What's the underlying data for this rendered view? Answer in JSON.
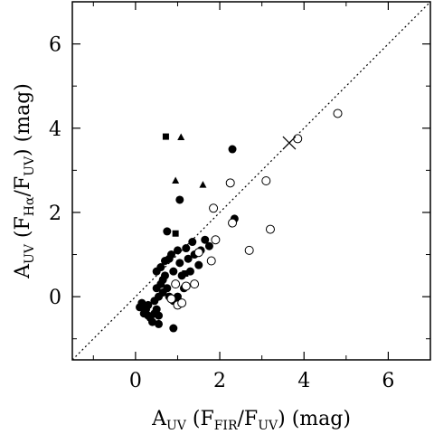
{
  "chart_data": {
    "type": "scatter",
    "xlabel": {
      "main": "A",
      "sub": "UV",
      "rest1": " (F",
      "sub2": "FIR",
      "rest2": "/F",
      "sub3": "UV",
      "rest3": ")  (mag)"
    },
    "ylabel": {
      "main": "A",
      "sub": "UV",
      "rest1": " (F",
      "sub2": "Hα",
      "rest2": "/F",
      "sub3": "UV",
      "rest3": ")  (mag)"
    },
    "xlim": [
      -1.5,
      7.0
    ],
    "ylim": [
      -1.5,
      7.0
    ],
    "xticks": [
      0,
      2,
      4,
      6
    ],
    "yticks": [
      0,
      2,
      4,
      6
    ],
    "xtick_labels": [
      "0",
      "2",
      "4",
      "6"
    ],
    "ytick_labels": [
      "0",
      "2",
      "4",
      "6"
    ],
    "one_to_one_line": true,
    "grid": false,
    "series": [
      {
        "marker": "filled-circle",
        "points": [
          [
            0.1,
            -0.25
          ],
          [
            0.15,
            -0.15
          ],
          [
            0.2,
            -0.4
          ],
          [
            0.25,
            -0.3
          ],
          [
            0.3,
            -0.2
          ],
          [
            0.35,
            -0.5
          ],
          [
            0.4,
            -0.6
          ],
          [
            0.45,
            -0.4
          ],
          [
            0.5,
            -0.3
          ],
          [
            0.55,
            -0.45
          ],
          [
            0.45,
            -0.1
          ],
          [
            0.55,
            0.0
          ],
          [
            0.5,
            0.2
          ],
          [
            0.6,
            0.3
          ],
          [
            0.65,
            0.1
          ],
          [
            0.5,
            0.6
          ],
          [
            0.6,
            0.7
          ],
          [
            0.7,
            0.5
          ],
          [
            0.75,
            0.2
          ],
          [
            0.8,
            0.0
          ],
          [
            0.7,
            0.85
          ],
          [
            0.8,
            0.9
          ],
          [
            0.85,
            1.0
          ],
          [
            0.9,
            0.6
          ],
          [
            0.95,
            0.3
          ],
          [
            1.0,
            1.1
          ],
          [
            1.05,
            0.8
          ],
          [
            1.1,
            0.5
          ],
          [
            1.15,
            0.2
          ],
          [
            1.2,
            1.15
          ],
          [
            1.25,
            0.9
          ],
          [
            1.3,
            0.6
          ],
          [
            1.35,
            1.3
          ],
          [
            1.4,
            1.0
          ],
          [
            1.5,
            0.75
          ],
          [
            1.55,
            1.1
          ],
          [
            1.65,
            1.35
          ],
          [
            1.75,
            1.2
          ],
          [
            1.0,
            0.0
          ],
          [
            0.9,
            -0.1
          ],
          [
            0.75,
            1.55
          ],
          [
            1.05,
            2.3
          ],
          [
            2.35,
            1.85
          ],
          [
            2.3,
            3.5
          ],
          [
            0.9,
            -0.75
          ],
          [
            0.55,
            -0.65
          ],
          [
            0.3,
            -0.45
          ],
          [
            0.65,
            0.4
          ]
        ]
      },
      {
        "marker": "open-circle",
        "points": [
          [
            0.95,
            0.3
          ],
          [
            1.0,
            -0.2
          ],
          [
            1.1,
            -0.15
          ],
          [
            1.2,
            0.25
          ],
          [
            1.4,
            0.3
          ],
          [
            1.5,
            1.05
          ],
          [
            1.8,
            0.85
          ],
          [
            1.9,
            1.35
          ],
          [
            1.85,
            2.1
          ],
          [
            2.3,
            1.75
          ],
          [
            2.25,
            2.7
          ],
          [
            2.7,
            1.1
          ],
          [
            3.1,
            2.75
          ],
          [
            3.2,
            1.6
          ],
          [
            3.85,
            3.75
          ],
          [
            4.8,
            4.35
          ],
          [
            0.85,
            -0.05
          ]
        ]
      },
      {
        "marker": "filled-square",
        "points": [
          [
            0.72,
            3.8
          ],
          [
            0.95,
            1.5
          ],
          [
            1.18,
            0.55
          ]
        ]
      },
      {
        "marker": "filled-triangle",
        "points": [
          [
            1.08,
            3.78
          ],
          [
            0.95,
            2.75
          ],
          [
            1.6,
            2.65
          ]
        ]
      },
      {
        "marker": "cross",
        "points": [
          [
            3.65,
            3.65
          ]
        ]
      }
    ]
  }
}
